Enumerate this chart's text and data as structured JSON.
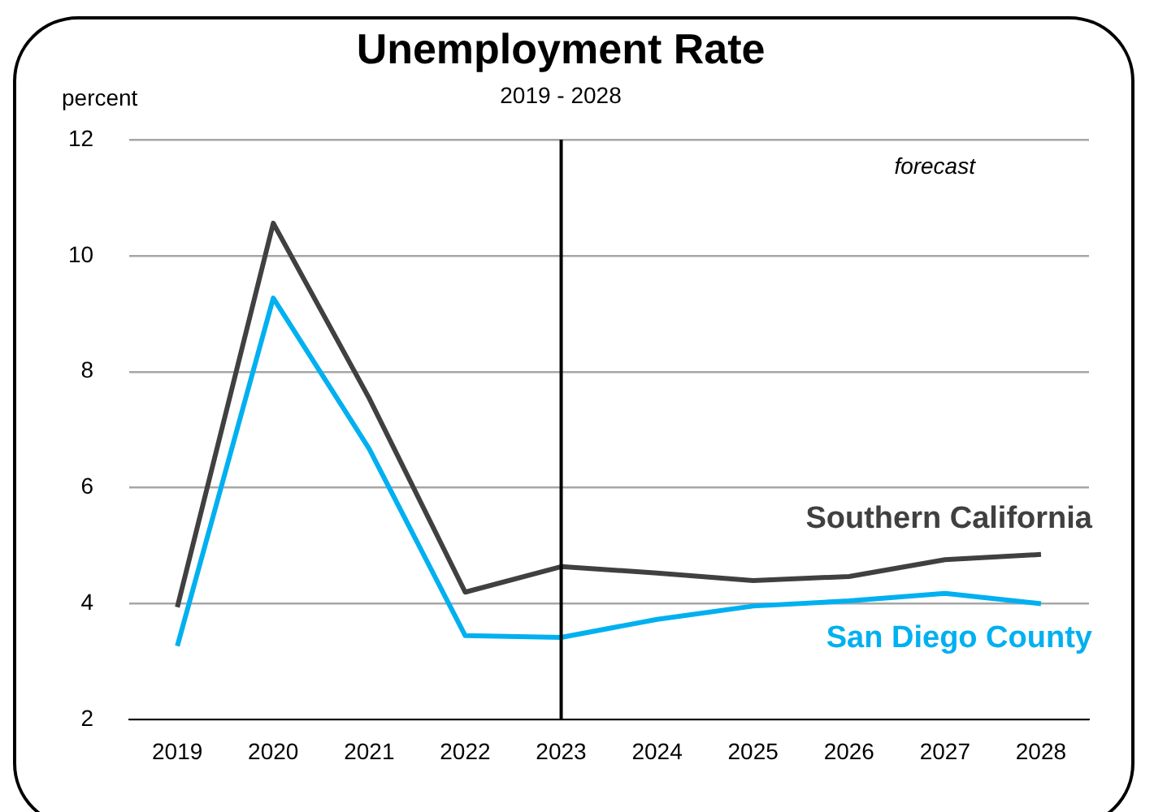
{
  "chart_data": {
    "type": "line",
    "title": "Unemployment Rate",
    "subtitle": "2019 - 2028",
    "ylabel": "percent",
    "annotations": [
      "forecast"
    ],
    "categories": [
      "2019",
      "2020",
      "2021",
      "2022",
      "2023",
      "2024",
      "2025",
      "2026",
      "2027",
      "2028"
    ],
    "series": [
      {
        "name": "Southern California",
        "color": "#404040",
        "values": [
          3.94,
          10.56,
          7.54,
          4.2,
          4.64,
          4.53,
          4.4,
          4.47,
          4.76,
          4.85
        ]
      },
      {
        "name": "San Diego County",
        "color": "#00b0f0",
        "values": [
          3.27,
          9.27,
          6.67,
          3.45,
          3.42,
          3.73,
          3.96,
          4.05,
          4.18,
          4.0
        ]
      }
    ],
    "ylim": [
      2,
      12
    ],
    "yticks": [
      2,
      4,
      6,
      8,
      10,
      12
    ],
    "grid": "y",
    "legend": false,
    "marker": "none",
    "line_style": "solid",
    "ref_lines": [
      {
        "axis": "x",
        "value": "2023",
        "color": "#000000"
      }
    ]
  }
}
